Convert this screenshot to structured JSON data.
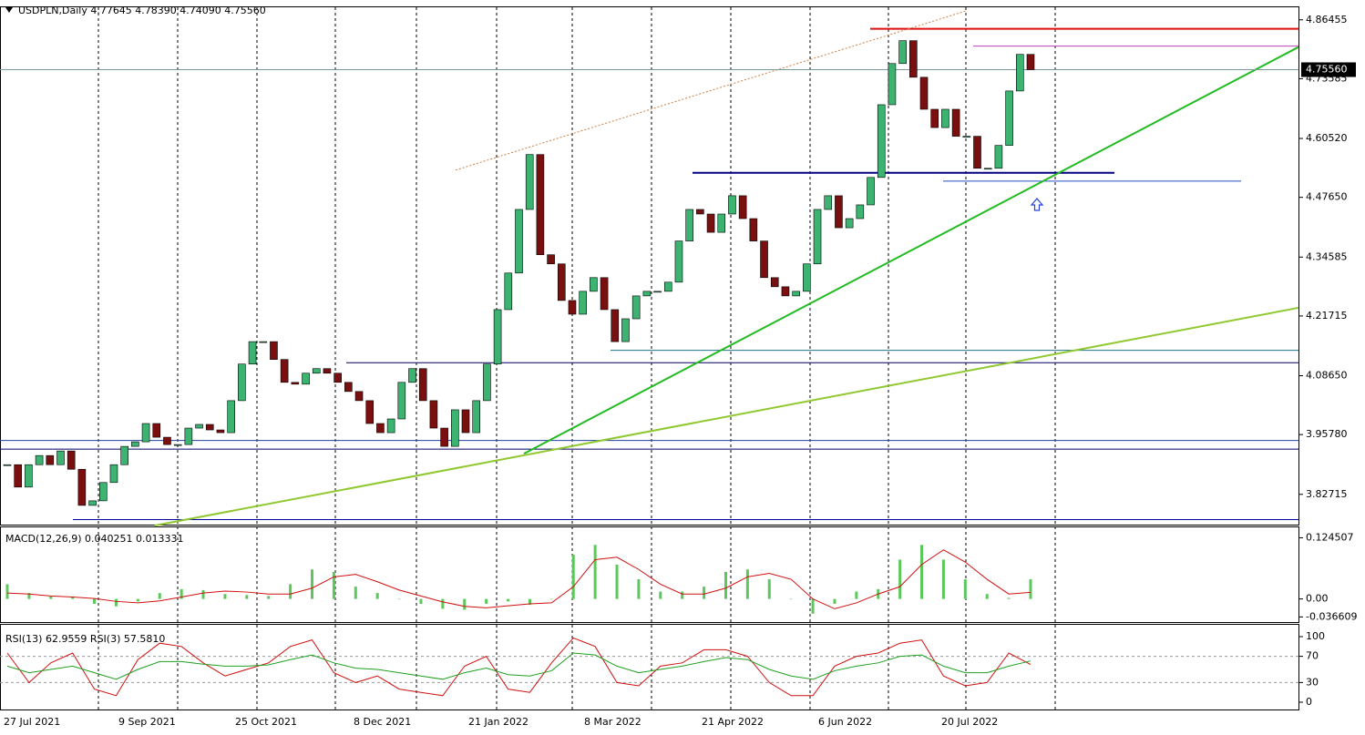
{
  "chart_data": [
    {
      "type": "candlestick",
      "title": "USDPLN,Daily  4.77645 4.78390 4.74090 4.75560",
      "up_color": "#3cb371",
      "down_color": "#7a0f0f",
      "close": [
        3.892,
        3.843,
        3.892,
        3.912,
        3.892,
        3.922,
        3.882,
        3.803,
        3.813,
        3.853,
        3.892,
        3.932,
        3.942,
        3.982,
        3.952,
        3.936,
        3.936,
        3.972,
        3.98,
        3.968,
        3.962,
        4.032,
        4.112,
        4.161,
        4.161,
        4.122,
        4.072,
        4.068,
        4.092,
        4.102,
        4.092,
        4.072,
        4.052,
        4.032,
        3.982,
        3.962,
        3.992,
        4.072,
        4.102,
        4.032,
        3.972,
        3.932,
        4.012,
        3.962,
        4.032,
        4.112,
        4.231,
        4.311,
        4.45,
        4.57,
        4.351,
        4.331,
        4.251,
        4.221,
        4.271,
        4.301,
        4.231,
        4.161,
        4.211,
        4.261,
        4.271,
        4.271,
        4.291,
        4.381,
        4.45,
        4.44,
        4.4,
        4.44,
        4.48,
        4.43,
        4.381,
        4.301,
        4.281,
        4.261,
        4.271,
        4.331,
        4.45,
        4.48,
        4.41,
        4.43,
        4.46,
        4.52,
        4.679,
        4.769,
        4.819,
        4.739,
        4.669,
        4.629,
        4.669,
        4.61,
        4.61,
        4.54,
        4.54,
        4.59,
        4.709,
        4.789,
        4.7556
      ],
      "ylim": [
        3.759,
        4.888
      ],
      "yticks": [
        {
          "value": 4.86455,
          "label": "4.86455"
        },
        {
          "value": 4.73585,
          "label": "4.73585"
        },
        {
          "value": 4.6052,
          "label": "4.60520"
        },
        {
          "value": 4.4765,
          "label": "4.47650"
        },
        {
          "value": 4.34585,
          "label": "4.34585"
        },
        {
          "value": 4.21715,
          "label": "4.21715"
        },
        {
          "value": 4.0865,
          "label": "4.08650"
        },
        {
          "value": 3.9578,
          "label": "3.95780"
        },
        {
          "value": 3.82715,
          "label": "3.82715"
        }
      ],
      "current_price": {
        "value": 4.7556,
        "label": "4.75560"
      },
      "levels": [
        {
          "value": 4.845,
          "color": "#e01010"
        },
        {
          "value": 4.807,
          "color": "#c040c0"
        },
        {
          "value": 4.53,
          "color": "#000080"
        },
        {
          "value": 4.512,
          "color": "#2050c0"
        },
        {
          "value": 4.142,
          "color": "#207080"
        },
        {
          "value": 4.115,
          "color": "#000060"
        },
        {
          "value": 3.945,
          "color": "#2040a0"
        },
        {
          "value": 3.926,
          "color": "#000060"
        },
        {
          "value": 3.772,
          "color": "#0000a0"
        }
      ],
      "trendlines": [
        {
          "from": 3.916,
          "to": 4.805,
          "color": "#22bb22"
        },
        {
          "from": 3.759,
          "to": 4.235,
          "color": "#90c830"
        },
        {
          "from": 4.536,
          "to": 4.884,
          "color": "#d08040"
        }
      ],
      "x_labels": [
        "27 Jul 2021",
        "9 Sep 2021",
        "25 Oct 2021",
        "8 Dec 2021",
        "21 Jan 2022",
        "8 Mar 2022",
        "21 Apr 2022",
        "6 Jun 2022",
        "20 Jul 2022"
      ]
    },
    {
      "type": "macd",
      "title": "MACD(12,26,9) 0.040251 0.013331",
      "histogram": {
        "color": "#5cc85c",
        "values": [
          0.03,
          0.012,
          0.005,
          0.005,
          -0.01,
          -0.015,
          -0.005,
          0.012,
          0.02,
          0.018,
          0.01,
          0.008,
          0.006,
          0.03,
          0.06,
          0.055,
          0.025,
          0.012,
          0.0,
          -0.01,
          -0.02,
          -0.022,
          -0.01,
          -0.005,
          -0.012,
          0.0,
          0.09,
          0.11,
          0.07,
          0.04,
          0.015,
          0.015,
          0.025,
          0.055,
          0.06,
          0.04,
          0.0,
          -0.03,
          -0.01,
          0.015,
          0.02,
          0.08,
          0.11,
          0.08,
          0.04,
          0.01,
          0.002,
          0.040251
        ]
      },
      "signal": {
        "color": "#d01010",
        "values": [
          0.012,
          0.01,
          0.006,
          0.004,
          0.001,
          -0.005,
          -0.008,
          -0.004,
          0.004,
          0.012,
          0.016,
          0.014,
          0.01,
          0.01,
          0.022,
          0.045,
          0.05,
          0.035,
          0.018,
          0.006,
          -0.006,
          -0.015,
          -0.018,
          -0.014,
          -0.01,
          -0.008,
          0.025,
          0.08,
          0.085,
          0.06,
          0.03,
          0.01,
          0.01,
          0.022,
          0.045,
          0.052,
          0.04,
          0.0,
          -0.02,
          -0.008,
          0.01,
          0.025,
          0.07,
          0.1,
          0.075,
          0.04,
          0.01,
          0.013331
        ]
      },
      "ylim": [
        -0.0489,
        0.142
      ],
      "yticks": [
        0.124507,
        {
          "value": 0,
          "label": "0.00"
        },
        -0.036609
      ]
    },
    {
      "type": "rsi",
      "title": "RSI(13) 62.9559  RSI(3) 57.5810",
      "rsi13": {
        "color": "#20a020",
        "values": [
          55,
          45,
          50,
          55,
          45,
          35,
          50,
          62,
          62,
          58,
          55,
          55,
          57,
          65,
          72,
          60,
          52,
          50,
          45,
          40,
          35,
          45,
          52,
          42,
          40,
          48,
          75,
          72,
          55,
          45,
          50,
          55,
          62,
          68,
          65,
          50,
          40,
          35,
          48,
          55,
          60,
          70,
          72,
          55,
          45,
          45,
          55,
          62.9559
        ]
      },
      "rsi3": {
        "color": "#d01010",
        "values": [
          75,
          30,
          60,
          75,
          20,
          10,
          65,
          90,
          85,
          60,
          40,
          50,
          60,
          85,
          95,
          45,
          30,
          40,
          20,
          15,
          10,
          55,
          70,
          20,
          15,
          60,
          98,
          85,
          30,
          25,
          55,
          60,
          80,
          80,
          70,
          30,
          10,
          10,
          55,
          70,
          75,
          90,
          95,
          40,
          25,
          30,
          75,
          57.581
        ]
      },
      "ylim": [
        -12.5,
        115.3
      ],
      "yticks": [
        100,
        70,
        30,
        0
      ],
      "levels": [
        70,
        30
      ]
    }
  ]
}
